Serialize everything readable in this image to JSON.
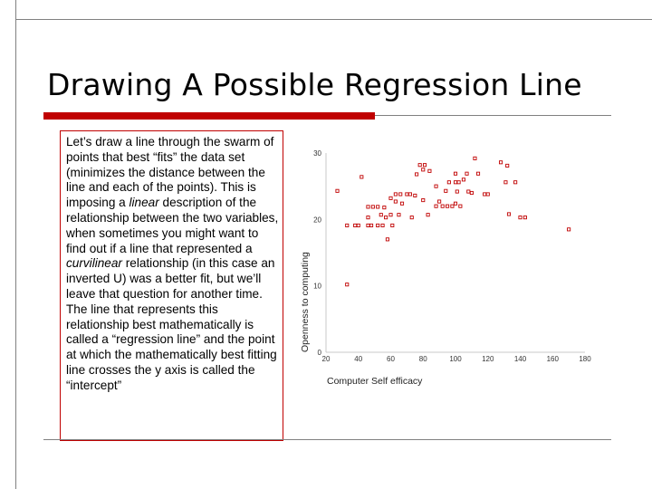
{
  "slide": {
    "title": "Drawing A Possible Regression Line"
  },
  "body_text": {
    "p1": "Let’s draw a line through the swarm of points that best “fits” the data set (minimizes the distance between the line and each of the points). This is imposing a ",
    "em1": "linear",
    "p2": " description of the relationship between the two variables, when sometimes you might want to find out if a line that represented a ",
    "em2": "curvilinear",
    "p3": " relationship (in this case an inverted U) was a better fit, but we’ll leave that question for another time. The line that represents this relationship best mathematically is called a “regression line” and the point at which the mathematically best fitting line crosses the y axis is called the “intercept”"
  },
  "colors": {
    "accent": "#c00000",
    "rule": "#808080",
    "marker": "#c00000"
  },
  "chart_data": {
    "type": "scatter",
    "xlabel": "Computer Self efficacy",
    "ylabel": "Openness to computing",
    "xlim": [
      20,
      180
    ],
    "ylim": [
      0,
      30
    ],
    "x_ticks": [
      "20",
      "40",
      "60",
      "80",
      "100",
      "120",
      "140",
      "160",
      "180"
    ],
    "y_ticks": [
      "30",
      "20",
      "10",
      "0"
    ],
    "y_tick_values": [
      30,
      20,
      10,
      0
    ],
    "grid": false,
    "legend": "none",
    "points": [
      [
        33,
        10.2
      ],
      [
        33,
        19.1
      ],
      [
        38,
        19.1
      ],
      [
        40,
        19.1
      ],
      [
        46,
        19.1
      ],
      [
        48,
        19.1
      ],
      [
        52,
        19.1
      ],
      [
        55,
        19.1
      ],
      [
        61,
        19.1
      ],
      [
        58,
        17.0
      ],
      [
        46,
        20.3
      ],
      [
        56,
        21.8
      ],
      [
        54,
        20.7
      ],
      [
        57,
        20.3
      ],
      [
        49,
        21.9
      ],
      [
        52,
        21.9
      ],
      [
        46,
        21.9
      ],
      [
        60,
        20.7
      ],
      [
        65,
        20.7
      ],
      [
        63,
        22.7
      ],
      [
        60,
        23.2
      ],
      [
        63,
        23.8
      ],
      [
        66,
        23.8
      ],
      [
        72,
        23.8
      ],
      [
        70,
        23.8
      ],
      [
        75,
        23.6
      ],
      [
        67,
        22.4
      ],
      [
        80,
        22.9
      ],
      [
        88,
        22.0
      ],
      [
        92,
        22.0
      ],
      [
        95,
        22.0
      ],
      [
        90,
        22.7
      ],
      [
        100,
        22.4
      ],
      [
        98,
        22.0
      ],
      [
        103,
        22.0
      ],
      [
        88,
        25.0
      ],
      [
        94,
        24.3
      ],
      [
        96,
        25.6
      ],
      [
        100,
        25.6
      ],
      [
        102,
        25.6
      ],
      [
        101,
        24.2
      ],
      [
        108,
        24.2
      ],
      [
        110,
        24.0
      ],
      [
        105,
        26.0
      ],
      [
        76,
        26.8
      ],
      [
        80,
        27.5
      ],
      [
        78,
        28.2
      ],
      [
        81,
        28.2
      ],
      [
        84,
        27.3
      ],
      [
        100,
        26.9
      ],
      [
        107,
        26.9
      ],
      [
        114,
        26.9
      ],
      [
        128,
        28.6
      ],
      [
        132,
        28.1
      ],
      [
        112,
        29.2
      ],
      [
        131,
        25.6
      ],
      [
        137,
        25.6
      ],
      [
        118,
        23.8
      ],
      [
        133,
        20.8
      ],
      [
        140,
        20.3
      ],
      [
        143,
        20.3
      ],
      [
        170,
        18.5
      ],
      [
        27,
        24.3
      ],
      [
        42,
        26.4
      ],
      [
        120,
        23.8
      ],
      [
        83,
        20.7
      ],
      [
        73,
        20.3
      ]
    ]
  }
}
